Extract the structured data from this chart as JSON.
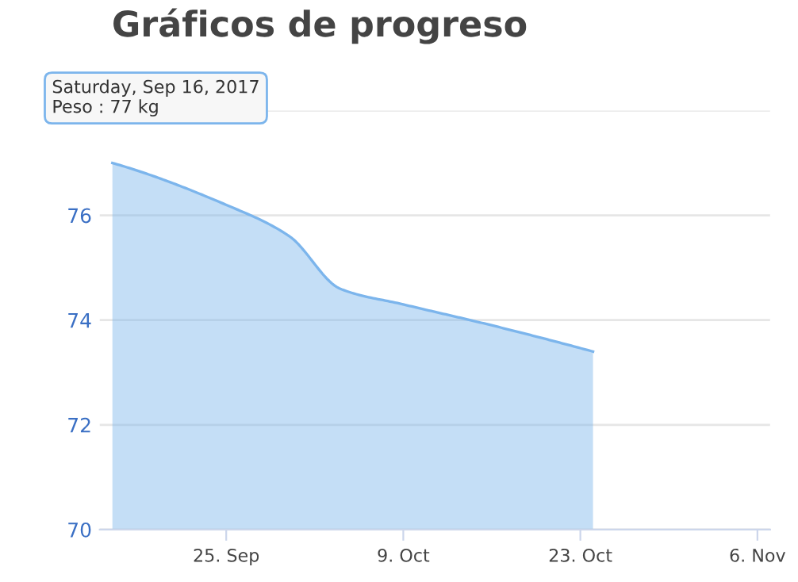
{
  "chart_data": {
    "type": "area",
    "title": "Gráficos de progreso",
    "x": [
      "2017-09-16",
      "2017-09-25",
      "2017-09-30",
      "2017-10-04",
      "2017-10-09",
      "2017-10-16",
      "2017-10-24"
    ],
    "series": [
      {
        "color": "#7cb5ec",
        "values": [
          77.0,
          76.2,
          75.6,
          74.6,
          74.3,
          73.9,
          73.4
        ]
      }
    ],
    "xlim": [
      "2017-09-15",
      "2017-11-07"
    ],
    "xticks": [
      {
        "value": "2017-09-25",
        "label": "25. Sep"
      },
      {
        "value": "2017-10-09",
        "label": "9. Oct"
      },
      {
        "value": "2017-10-23",
        "label": "23. Oct"
      },
      {
        "value": "2017-11-06",
        "label": "6. Nov"
      }
    ],
    "ylim": [
      70,
      78
    ],
    "yticks": [
      70,
      72,
      74,
      76,
      {
        "value": 78,
        "label": null
      }
    ],
    "grid": "y",
    "legend": false,
    "annotations": [
      "Saturday, Sep 16, 2017",
      "Peso : 77 kg"
    ]
  }
}
